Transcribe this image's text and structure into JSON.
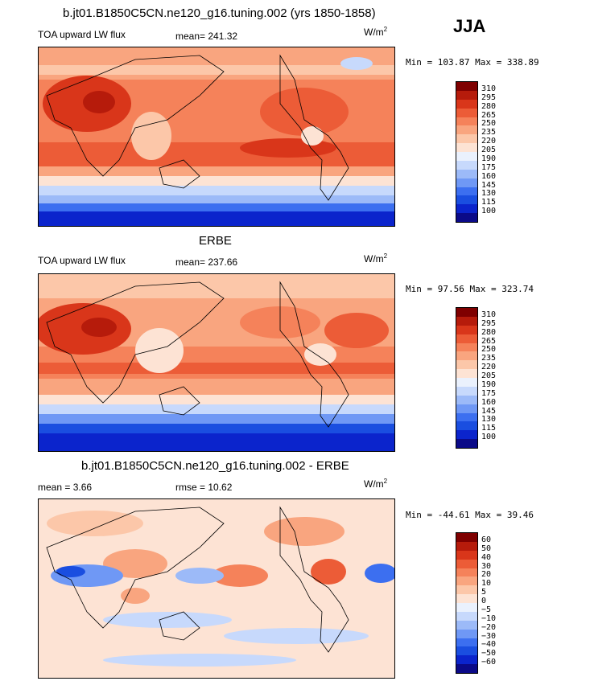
{
  "season": "JJA",
  "colors": [
    "#0b0a88",
    "#0b24cc",
    "#1a4ee0",
    "#3c6ff0",
    "#6f98f5",
    "#9cbaf8",
    "#c7d9fc",
    "#eaf1fd",
    "#fde3d4",
    "#fcc7a9",
    "#f9a57f",
    "#f5825a",
    "#ec5c37",
    "#d9361a",
    "#b61b0b",
    "#7f0000"
  ],
  "panels": [
    {
      "title": "b.jt01.B1850C5CN.ne120_g16.tuning.002 (yrs 1850-1858)",
      "left_label": "TOA upward LW flux",
      "mean_label": "mean= 241.32",
      "units": "W/m",
      "units_exp": "2",
      "minmax": "Min = 103.87 Max = 338.89",
      "ticks": [
        "310",
        "295",
        "280",
        "265",
        "250",
        "235",
        "220",
        "205",
        "190",
        "175",
        "160",
        "145",
        "130",
        "115",
        "100"
      ]
    },
    {
      "title": "ERBE",
      "left_label": "TOA upward LW flux",
      "mean_label": "mean= 237.66",
      "units": "W/m",
      "units_exp": "2",
      "minmax": "Min =  97.56 Max = 323.74",
      "ticks": [
        "310",
        "295",
        "280",
        "265",
        "250",
        "235",
        "220",
        "205",
        "190",
        "175",
        "160",
        "145",
        "130",
        "115",
        "100"
      ]
    },
    {
      "title": "b.jt01.B1850C5CN.ne120_g16.tuning.002 - ERBE",
      "left_label": "mean =   3.66",
      "mean_label": "rmse =  10.62",
      "units": "W/m",
      "units_exp": "2",
      "minmax": "Min = -44.61 Max =  39.46",
      "ticks": [
        "60",
        "50",
        "40",
        "30",
        "20",
        "10",
        "5",
        "0",
        "−5",
        "−10",
        "−20",
        "−30",
        "−40",
        "−50",
        "−60"
      ]
    }
  ]
}
